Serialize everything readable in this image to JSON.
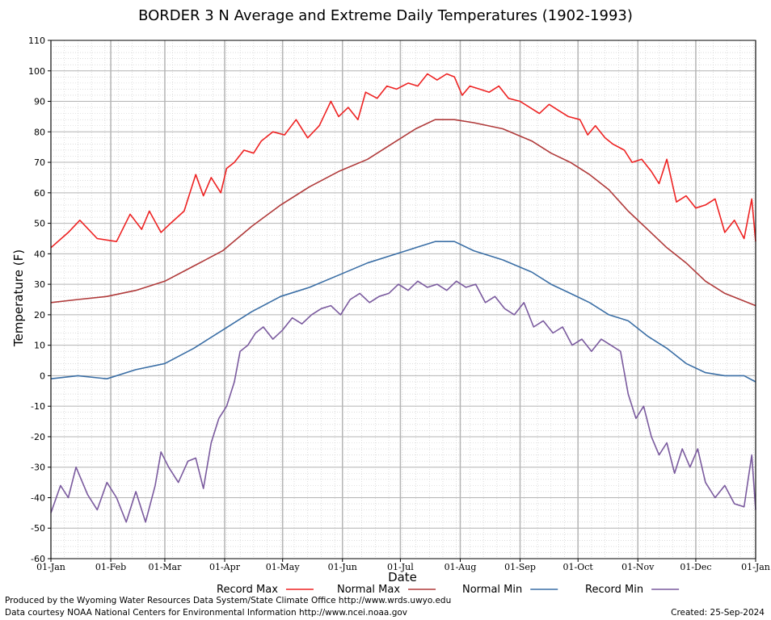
{
  "chart_data": {
    "type": "line",
    "title": "BORDER 3 N Average and Extreme Daily Temperatures (1902-1993)",
    "xlabel": "Date",
    "ylabel": "Temperature (F)",
    "ylim": [
      -60,
      110
    ],
    "yticks": [
      110,
      100,
      90,
      80,
      70,
      60,
      50,
      40,
      30,
      20,
      10,
      0,
      -10,
      -20,
      -30,
      -40,
      -50,
      -60
    ],
    "xlim": [
      1,
      366
    ],
    "xticks": [
      {
        "day": 1,
        "label": "01-Jan"
      },
      {
        "day": 32,
        "label": "01-Feb"
      },
      {
        "day": 60,
        "label": "01-Mar"
      },
      {
        "day": 91,
        "label": "01-Apr"
      },
      {
        "day": 121,
        "label": "01-May"
      },
      {
        "day": 152,
        "label": "01-Jun"
      },
      {
        "day": 182,
        "label": "01-Jul"
      },
      {
        "day": 213,
        "label": "01-Aug"
      },
      {
        "day": 244,
        "label": "01-Sep"
      },
      {
        "day": 274,
        "label": "01-Oct"
      },
      {
        "day": 305,
        "label": "01-Nov"
      },
      {
        "day": 335,
        "label": "01-Dec"
      },
      {
        "day": 366,
        "label": "01-Jan"
      }
    ],
    "grid": true,
    "legend_position": "bottom",
    "series": [
      {
        "name": "Record Max",
        "color": "#ee2222",
        "days": [
          1,
          10,
          16,
          25,
          35,
          42,
          48,
          52,
          58,
          63,
          70,
          76,
          80,
          84,
          89,
          92,
          96,
          101,
          106,
          110,
          116,
          122,
          128,
          134,
          140,
          146,
          150,
          155,
          160,
          164,
          170,
          175,
          180,
          186,
          191,
          196,
          201,
          206,
          210,
          214,
          218,
          223,
          228,
          233,
          238,
          244,
          249,
          254,
          259,
          264,
          269,
          275,
          279,
          283,
          288,
          292,
          298,
          302,
          307,
          312,
          316,
          320,
          325,
          330,
          335,
          340,
          345,
          350,
          355,
          360,
          364,
          366
        ],
        "values": [
          42,
          47,
          51,
          45,
          44,
          53,
          48,
          54,
          47,
          50,
          54,
          66,
          59,
          65,
          60,
          68,
          70,
          74,
          73,
          77,
          80,
          79,
          84,
          78,
          82,
          90,
          85,
          88,
          84,
          93,
          91,
          95,
          94,
          96,
          95,
          99,
          97,
          99,
          98,
          92,
          95,
          94,
          93,
          95,
          91,
          90,
          88,
          86,
          89,
          87,
          85,
          84,
          79,
          82,
          78,
          76,
          74,
          70,
          71,
          67,
          63,
          71,
          57,
          59,
          55,
          56,
          58,
          47,
          51,
          45,
          58,
          44
        ]
      },
      {
        "name": "Normal Max",
        "color": "#b03a3a",
        "days": [
          1,
          15,
          30,
          45,
          60,
          75,
          90,
          105,
          120,
          135,
          150,
          165,
          180,
          190,
          200,
          210,
          220,
          235,
          250,
          260,
          270,
          280,
          290,
          300,
          310,
          320,
          330,
          340,
          350,
          366
        ],
        "values": [
          24,
          25,
          26,
          28,
          31,
          36,
          41,
          49,
          56,
          62,
          67,
          71,
          77,
          81,
          84,
          84,
          83,
          81,
          77,
          73,
          70,
          66,
          61,
          54,
          48,
          42,
          37,
          31,
          27,
          23
        ]
      },
      {
        "name": "Normal Min",
        "color": "#3a6ea5",
        "days": [
          1,
          15,
          30,
          45,
          60,
          75,
          90,
          105,
          120,
          135,
          150,
          165,
          180,
          190,
          200,
          210,
          220,
          235,
          250,
          260,
          270,
          280,
          290,
          300,
          310,
          320,
          330,
          340,
          350,
          360,
          366
        ],
        "values": [
          -1,
          0,
          -1,
          2,
          4,
          9,
          15,
          21,
          26,
          29,
          33,
          37,
          40,
          42,
          44,
          44,
          41,
          38,
          34,
          30,
          27,
          24,
          20,
          18,
          13,
          9,
          4,
          1,
          0,
          0,
          -2
        ]
      },
      {
        "name": "Record Min",
        "color": "#7a5a9e",
        "days": [
          1,
          6,
          10,
          14,
          20,
          25,
          30,
          35,
          40,
          45,
          50,
          55,
          58,
          62,
          67,
          72,
          76,
          80,
          84,
          88,
          92,
          96,
          99,
          103,
          107,
          111,
          116,
          121,
          126,
          131,
          136,
          141,
          146,
          151,
          156,
          161,
          166,
          171,
          176,
          181,
          186,
          191,
          196,
          201,
          206,
          211,
          216,
          221,
          226,
          231,
          236,
          241,
          246,
          251,
          256,
          261,
          266,
          271,
          276,
          281,
          286,
          291,
          296,
          300,
          304,
          308,
          312,
          316,
          320,
          324,
          328,
          332,
          336,
          340,
          345,
          350,
          355,
          360,
          364,
          366
        ],
        "values": [
          -45,
          -36,
          -40,
          -30,
          -39,
          -44,
          -35,
          -40,
          -48,
          -38,
          -48,
          -36,
          -25,
          -30,
          -35,
          -28,
          -27,
          -37,
          -22,
          -14,
          -10,
          -2,
          8,
          10,
          14,
          16,
          12,
          15,
          19,
          17,
          20,
          22,
          23,
          20,
          25,
          27,
          24,
          26,
          27,
          30,
          28,
          31,
          29,
          30,
          28,
          31,
          29,
          30,
          24,
          26,
          22,
          20,
          24,
          16,
          18,
          14,
          16,
          10,
          12,
          8,
          12,
          10,
          8,
          -6,
          -14,
          -10,
          -20,
          -26,
          -22,
          -32,
          -24,
          -30,
          -24,
          -35,
          -40,
          -36,
          -42,
          -43,
          -26,
          -44
        ]
      }
    ]
  },
  "footer": {
    "produced_by": "Produced by the Wyoming Water Resources Data System/State Climate Office http://www.wrds.uwyo.edu",
    "courtesy": "Data courtesy NOAA National Centers for Environmental Information http://www.ncei.noaa.gov",
    "created": "Created:  25-Sep-2024"
  }
}
